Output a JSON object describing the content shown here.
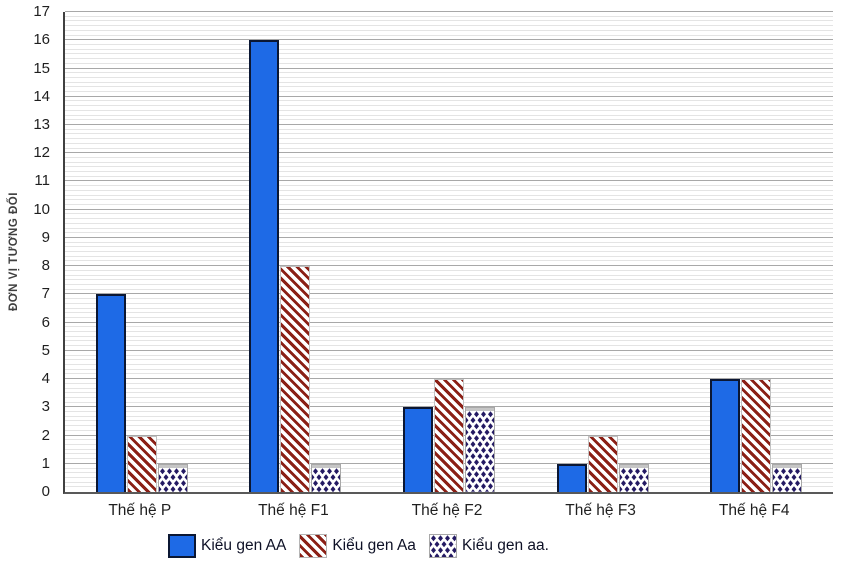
{
  "chart_data": {
    "type": "bar",
    "categories": [
      "Thế hệ P",
      "Thế hệ F1",
      "Thế hệ F2",
      "Thế hệ F3",
      "Thế hệ F4"
    ],
    "series": [
      {
        "name": "Kiểu gen AA",
        "pattern": "solid-blue",
        "values": [
          7,
          16,
          3,
          1,
          4
        ]
      },
      {
        "name": "Kiểu gen Aa",
        "pattern": "diagonal-hatch",
        "values": [
          2,
          8,
          4,
          2,
          4
        ]
      },
      {
        "name": "Kiểu gen aa.",
        "pattern": "diamond-dots",
        "values": [
          1,
          1,
          3,
          1,
          1
        ]
      }
    ],
    "xlabel": "",
    "ylabel": "ĐƠN VỊ TƯƠNG ĐỐI",
    "ylim": [
      0,
      17
    ],
    "y_major_unit": 1,
    "y_minor_divisions_per_major": 6,
    "grid": "horizontal major+minor",
    "legend_position": "bottom"
  },
  "colors": {
    "bar_blue": "#1e6ae6",
    "bar_blue_border": "#0b1733",
    "hatch_red": "#8b2016",
    "diamond_navy": "#241a63",
    "grid_major": "#a8a8a8",
    "grid_minor": "#e4e4e4",
    "y_axis_line": "#404040",
    "x_axis_line": "#595959",
    "tick_text": "#1f1f1f",
    "legend_text": "#0e1126"
  }
}
